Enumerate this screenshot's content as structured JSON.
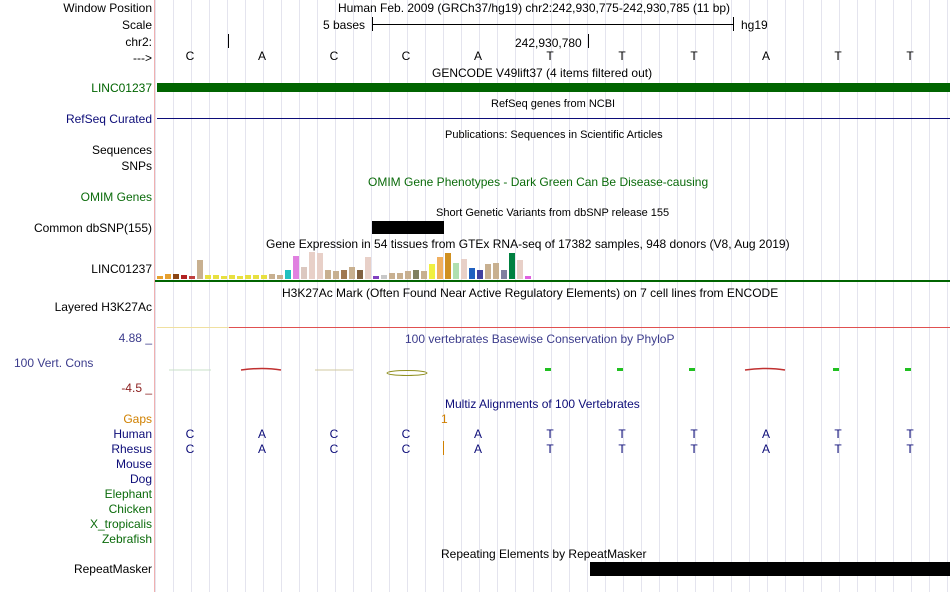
{
  "colors": {
    "gencode": "#006400",
    "refseq": "#0c0c78",
    "omim": "#0b6b0b",
    "phylop_label": "#3c3c8c",
    "phylop_max": "#3c3c8c",
    "phylop_min": "#8c2020",
    "gaps": "#d08000",
    "species_blue": "#0c0c78",
    "species_green": "#0b6b0b",
    "snp_block": "#000000",
    "repeat_block": "#000000",
    "h3k27ac": "#e05050"
  },
  "header": {
    "window_position_label": "Window Position",
    "window_position_value": "Human Feb. 2009 (GRCh37/hg19)   chr2:242,930,775-242,930,785 (11 bp)",
    "scale_label": "Scale",
    "scale_value": "5 bases",
    "assembly": "hg19",
    "chrom_label": "chr2:",
    "coordinate": "242,930,780",
    "strand_label": "--->"
  },
  "sequence": [
    "C",
    "A",
    "C",
    "C",
    "A",
    "T",
    "T",
    "T",
    "A",
    "T",
    "T"
  ],
  "tracks": {
    "gencode": {
      "title": "GENCODE V49lift37 (4 items filtered out)",
      "label": "LINC01237"
    },
    "refseq": {
      "title": "RefSeq genes from NCBI",
      "label": "RefSeq Curated"
    },
    "publications": {
      "title": "Publications: Sequences in Scientific Articles",
      "label_1": "Sequences",
      "label_2": "SNPs"
    },
    "omim": {
      "title": "OMIM Gene Phenotypes - Dark Green Can Be Disease-causing",
      "label": "OMIM Genes"
    },
    "dbsnp": {
      "title": "Short Genetic Variants from dbSNP release 155",
      "label": "Common dbSNP(155)"
    },
    "gtex": {
      "title": "Gene Expression in 54 tissues from GTEx RNA-seq of 17382 samples, 948 donors (V8, Aug 2019)",
      "label": "LINC01237",
      "bars": [
        {
          "v": 0.12,
          "c": "#e6a030"
        },
        {
          "v": 0.2,
          "c": "#e6a030"
        },
        {
          "v": 0.18,
          "c": "#8b4513"
        },
        {
          "v": 0.14,
          "c": "#b22222"
        },
        {
          "v": 0.1,
          "c": "#c04040"
        },
        {
          "v": 0.7,
          "c": "#c8b090"
        },
        {
          "v": 0.16,
          "c": "#e8e040"
        },
        {
          "v": 0.14,
          "c": "#e8e040"
        },
        {
          "v": 0.12,
          "c": "#e8e040"
        },
        {
          "v": 0.13,
          "c": "#e8e040"
        },
        {
          "v": 0.12,
          "c": "#e8e040"
        },
        {
          "v": 0.14,
          "c": "#e8e040"
        },
        {
          "v": 0.15,
          "c": "#e8e040"
        },
        {
          "v": 0.14,
          "c": "#e8e040"
        },
        {
          "v": 0.2,
          "c": "#c8b090"
        },
        {
          "v": 0.16,
          "c": "#c8b090"
        },
        {
          "v": 0.35,
          "c": "#20c0c0"
        },
        {
          "v": 0.85,
          "c": "#e080e0"
        },
        {
          "v": 0.45,
          "c": "#dcc8c0"
        },
        {
          "v": 1.0,
          "c": "#e8d0c8"
        },
        {
          "v": 0.95,
          "c": "#e8d0c8"
        },
        {
          "v": 0.35,
          "c": "#c8b090"
        },
        {
          "v": 0.3,
          "c": "#c8b090"
        },
        {
          "v": 0.35,
          "c": "#a07850"
        },
        {
          "v": 0.45,
          "c": "#c8b090"
        },
        {
          "v": 0.35,
          "c": "#806040"
        },
        {
          "v": 0.8,
          "c": "#e8d0c8"
        },
        {
          "v": 0.12,
          "c": "#8040c0"
        },
        {
          "v": 0.15,
          "c": "#c8c8c8"
        },
        {
          "v": 0.24,
          "c": "#c8b090"
        },
        {
          "v": 0.24,
          "c": "#c8b090"
        },
        {
          "v": 0.3,
          "c": "#c8b090"
        },
        {
          "v": 0.35,
          "c": "#808060"
        },
        {
          "v": 0.3,
          "c": "#c8b090"
        },
        {
          "v": 0.55,
          "c": "#f0f040"
        },
        {
          "v": 0.8,
          "c": "#f0b060"
        },
        {
          "v": 0.95,
          "c": "#d09020"
        },
        {
          "v": 0.6,
          "c": "#b0e0b0"
        },
        {
          "v": 0.75,
          "c": "#e8d0c8"
        },
        {
          "v": 0.4,
          "c": "#2060c0"
        },
        {
          "v": 0.35,
          "c": "#4040a0"
        },
        {
          "v": 0.55,
          "c": "#c8b090"
        },
        {
          "v": 0.6,
          "c": "#c8b090"
        },
        {
          "v": 0.35,
          "c": "#8080a0"
        },
        {
          "v": 0.95,
          "c": "#008040"
        },
        {
          "v": 0.7,
          "c": "#e8d0c8"
        },
        {
          "v": 0.12,
          "c": "#e060e0"
        }
      ]
    },
    "h3k27ac": {
      "title": "H3K27Ac Mark (Often Found Near Active Regulatory Elements) on 7 cell lines from ENCODE",
      "label": "Layered H3K27Ac"
    },
    "phylop": {
      "title": "100 vertebrates Basewise Conservation by PhyloP",
      "label": "100 Vert. Cons",
      "max_label": "4.88 _",
      "min_label": "-4.5 _"
    },
    "multiz": {
      "title": "Multiz Alignments of 100 Vertebrates",
      "gaps_label": "Gaps",
      "gap_count": "1",
      "species": [
        {
          "name": "Human",
          "bases": [
            "C",
            "A",
            "C",
            "C",
            "A",
            "T",
            "T",
            "T",
            "A",
            "T",
            "T"
          ]
        },
        {
          "name": "Rhesus",
          "bases": [
            "C",
            "A",
            "C",
            "C",
            "A",
            "T",
            "T",
            "T",
            "A",
            "T",
            "T"
          ]
        },
        {
          "name": "Mouse",
          "bases": []
        },
        {
          "name": "Dog",
          "bases": []
        },
        {
          "name": "Elephant",
          "bases": []
        },
        {
          "name": "Chicken",
          "bases": []
        },
        {
          "name": "X_tropicalis",
          "bases": []
        },
        {
          "name": "Zebrafish",
          "bases": []
        }
      ]
    },
    "repeatmasker": {
      "title": "Repeating Elements by RepeatMasker",
      "label": "RepeatMasker"
    }
  }
}
